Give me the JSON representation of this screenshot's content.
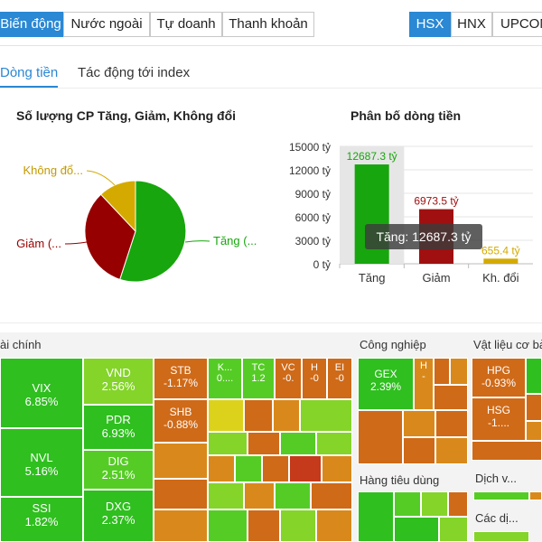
{
  "top_tabs": [
    "Biến động",
    "Nước ngoài",
    "Tự doanh",
    "Thanh khoản"
  ],
  "exchange_tabs": [
    "HSX",
    "HNX",
    "UPCOM"
  ],
  "sub_tabs": [
    "Dòng tiền",
    "Tác động tới index"
  ],
  "pie_chart": {
    "title": "Số lượng CP Tăng, Giảm, Không đổi",
    "labels": [
      "Tăng (...",
      "Giảm (...",
      "Không đổ..."
    ],
    "colors": {
      "tang": "#17a60d",
      "giam": "#960000",
      "khong_doi": "#d4aa00"
    }
  },
  "chart_data": {
    "type": "bar",
    "title": "Phân bố dòng tiền",
    "categories": [
      "Tăng",
      "Giảm",
      "Kh. đổi"
    ],
    "values": [
      12687.3,
      6973.5,
      655.4
    ],
    "value_labels": [
      "12687.3 tỷ",
      "6973.5 tỷ",
      "655.4 tỷ"
    ],
    "colors": [
      "#17a60d",
      "#a01010",
      "#d4aa00"
    ],
    "ylim": [
      0,
      15000
    ],
    "yticks": [
      "0 tỷ",
      "3000 tỷ",
      "6000 tỷ",
      "9000 tỷ",
      "12000 tỷ",
      "15000 tỷ"
    ],
    "tooltip": "Tăng: 12687.3 tỷ"
  },
  "treemap": {
    "sectors": [
      "ài chính",
      "Công nghiệp",
      "Vật liệu cơ bả",
      "Hàng tiêu dùng",
      "Dịch v...",
      "Các dị..."
    ],
    "tiles": [
      {
        "sym": "VIX",
        "chg": "6.85%"
      },
      {
        "sym": "NVL",
        "chg": "5.16%"
      },
      {
        "sym": "SSI",
        "chg": "1.82%"
      },
      {
        "sym": "VND",
        "chg": "2.56%"
      },
      {
        "sym": "PDR",
        "chg": "6.93%"
      },
      {
        "sym": "DIG",
        "chg": "2.51%"
      },
      {
        "sym": "DXG",
        "chg": "2.37%"
      },
      {
        "sym": "STB",
        "chg": "-1.17%"
      },
      {
        "sym": "SHB",
        "chg": "-0.88%"
      },
      {
        "sym": "K...",
        "chg": "0...."
      },
      {
        "sym": "TC",
        "chg": "1.2"
      },
      {
        "sym": "VC",
        "chg": "-0."
      },
      {
        "sym": "H",
        "chg": "-0"
      },
      {
        "sym": "EI",
        "chg": "-0"
      },
      {
        "sym": "GEX",
        "chg": "2.39%"
      },
      {
        "sym": "H",
        "chg": "-"
      },
      {
        "sym": "HPG",
        "chg": "-0.93%"
      },
      {
        "sym": "HSG",
        "chg": "-1...."
      }
    ]
  }
}
